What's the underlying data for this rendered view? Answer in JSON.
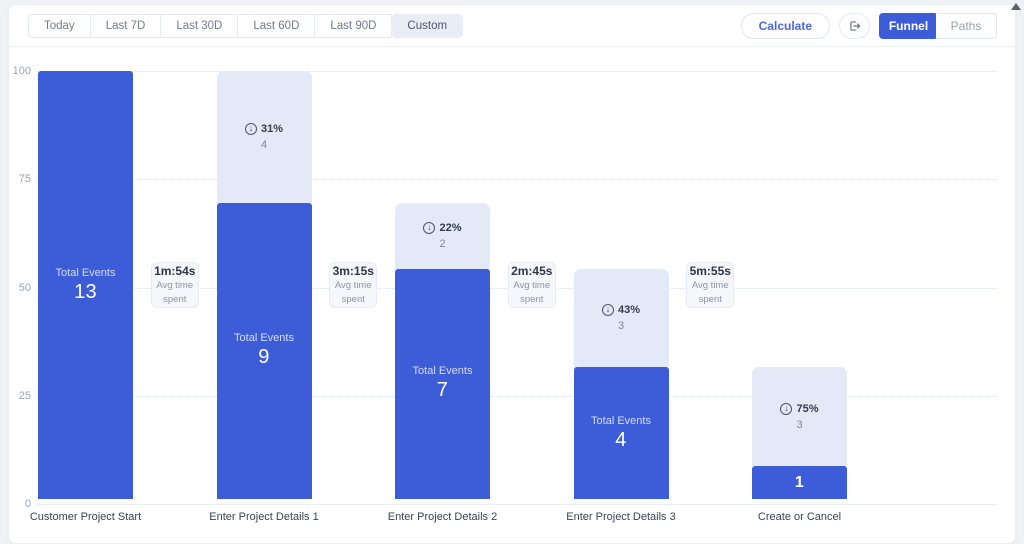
{
  "toolbar": {
    "date_ranges": [
      {
        "label": "Today",
        "active": false
      },
      {
        "label": "Last 7D",
        "active": false
      },
      {
        "label": "Last 30D",
        "active": false
      },
      {
        "label": "Last 60D",
        "active": false
      },
      {
        "label": "Last 90D",
        "active": false
      },
      {
        "label": "Custom",
        "active": true
      }
    ],
    "calculate_label": "Calculate",
    "export_icon": "export-icon",
    "view_toggle": [
      {
        "label": "Funnel",
        "active": true
      },
      {
        "label": "Paths",
        "active": false
      }
    ]
  },
  "chart_data": {
    "type": "bar",
    "variant": "funnel",
    "categories": [
      "Customer Project Start",
      "Enter Project Details 1",
      "Enter Project Details 2",
      "Enter Project Details 3",
      "Create or Cancel"
    ],
    "values": [
      13,
      9,
      7,
      4,
      1
    ],
    "heights_pct_of_first": [
      100,
      69.2,
      53.8,
      30.8,
      7.7
    ],
    "total_events_label": "Total Events",
    "dropoff_icon": "circled-down-arrow-icon",
    "avg_time_label_lines": [
      "Avg time",
      "spent"
    ],
    "y_ticks": [
      100,
      75,
      50,
      25,
      0
    ],
    "ylim": [
      0,
      100
    ],
    "grid": "horizontal dotted",
    "colors": {
      "bar": "#3d5cd7",
      "dropoff_segment": "#e4e9f7",
      "active_toggle": "#3d5cd7"
    },
    "steps": [
      {
        "label": "Customer Project Start",
        "total_events": 13
      },
      {
        "label": "Enter Project Details 1",
        "total_events": 9,
        "dropoff": {
          "pct": "31%",
          "count": 4
        },
        "avg_time_from_prev": "1m:54s"
      },
      {
        "label": "Enter Project Details 2",
        "total_events": 7,
        "dropoff": {
          "pct": "22%",
          "count": 2
        },
        "avg_time_from_prev": "3m:15s"
      },
      {
        "label": "Enter Project Details 3",
        "total_events": 4,
        "dropoff": {
          "pct": "43%",
          "count": 3
        },
        "avg_time_from_prev": "2m:45s"
      },
      {
        "label": "Create or Cancel",
        "total_events": 1,
        "dropoff": {
          "pct": "75%",
          "count": 3
        },
        "avg_time_from_prev": "5m:55s"
      }
    ]
  }
}
